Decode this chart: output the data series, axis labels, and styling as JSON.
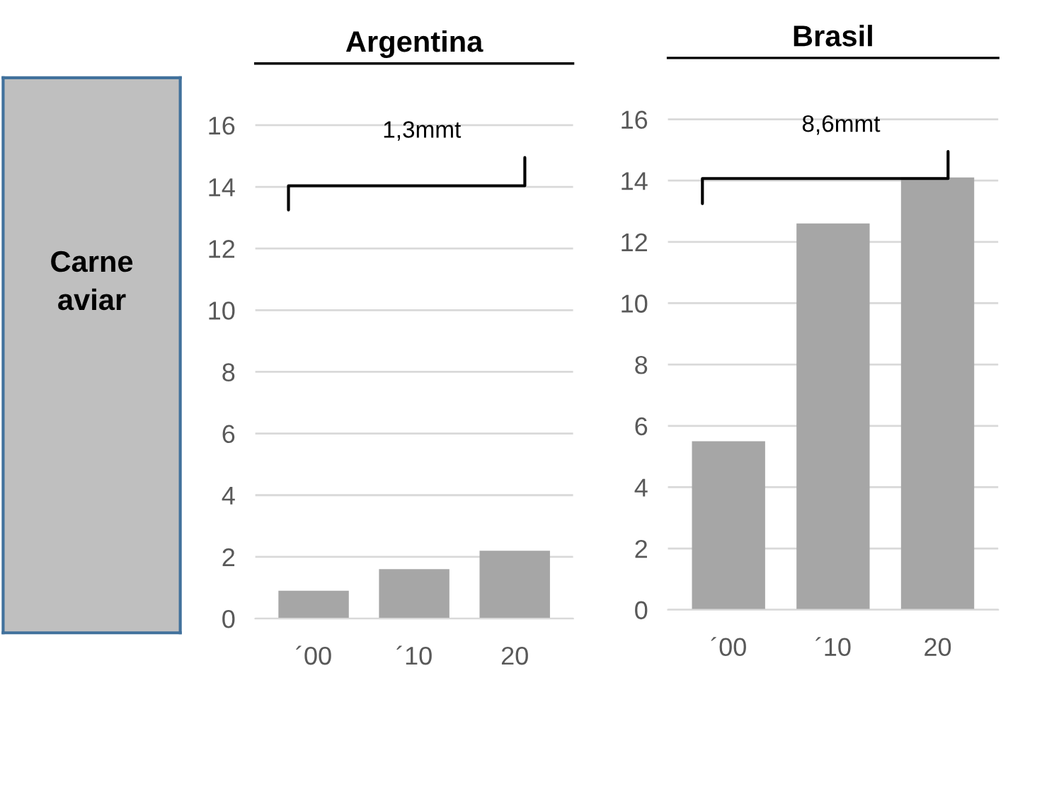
{
  "chart_data": [
    {
      "type": "other",
      "annotations": [
        "Carne aviar"
      ]
    },
    {
      "type": "bar",
      "title": "Argentina",
      "categories": [
        "´00",
        "´10",
        "20"
      ],
      "values": [
        0.9,
        1.6,
        2.2
      ],
      "color": "#a6a6a6",
      "ylim": [
        0,
        18
      ],
      "yticks": [
        0,
        2,
        4,
        6,
        8,
        10,
        12,
        14,
        16
      ],
      "grid": "y",
      "annotations": [
        "1,3mmt"
      ]
    },
    {
      "type": "bar",
      "title": "Brasil",
      "categories": [
        "´00",
        "´10",
        "20"
      ],
      "values": [
        5.5,
        12.6,
        14.1
      ],
      "color": "#a6a6a6",
      "ylim": [
        0,
        18
      ],
      "yticks": [
        0,
        2,
        4,
        6,
        8,
        10,
        12,
        14,
        16
      ],
      "grid": "y",
      "annotations": [
        "8,6mmt"
      ]
    }
  ]
}
